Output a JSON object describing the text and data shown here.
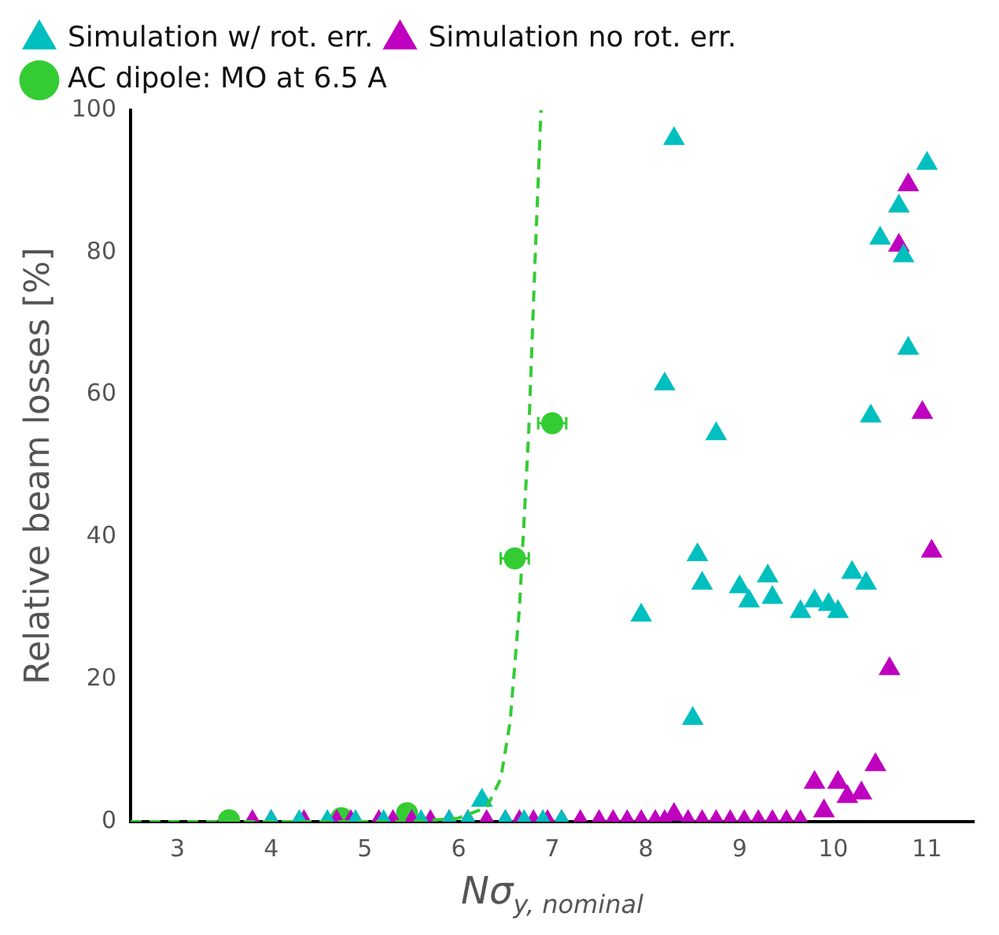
{
  "chart_data": {
    "type": "scatter",
    "xlabel": "Nσ$_{y, nominal}$",
    "ylabel": "Relative beam losses [%]",
    "xlim": [
      2.5,
      11.5
    ],
    "xticks": [
      3,
      4,
      5,
      6,
      7,
      8,
      9,
      10,
      11
    ],
    "ylim": [
      0,
      100
    ],
    "yticks": [
      0,
      20,
      40,
      60,
      80,
      100
    ],
    "legend": "top",
    "grid": false,
    "series": [
      {
        "name": "Simulation w/ rot. err.",
        "color": "#00bfbf",
        "marker": "triangle",
        "x": [
          4.0,
          4.3,
          4.6,
          4.9,
          5.2,
          5.6,
          5.9,
          6.1,
          6.25,
          6.5,
          6.7,
          6.9,
          7.1,
          7.95,
          8.2,
          8.3,
          8.5,
          8.55,
          8.6,
          8.75,
          9.0,
          9.1,
          9.3,
          9.35,
          9.65,
          9.8,
          9.95,
          10.05,
          10.2,
          10.35,
          10.4,
          10.5,
          10.7,
          10.75,
          10.8,
          11.0
        ],
        "values": [
          0,
          0,
          0,
          0,
          0,
          0,
          0,
          0,
          3,
          0,
          0,
          0,
          0,
          29,
          61.5,
          96,
          14.5,
          37.5,
          33.5,
          54.5,
          33,
          31,
          34.5,
          31.5,
          29.5,
          31,
          30.5,
          29.5,
          35,
          33.5,
          57,
          82,
          86.5,
          79.5,
          66.5,
          92.5
        ]
      },
      {
        "name": "Simulation no rot. err.",
        "color": "#bf00bf",
        "marker": "triangle",
        "x": [
          3.8,
          4.0,
          4.35,
          4.7,
          4.85,
          5.15,
          5.3,
          5.5,
          5.7,
          5.9,
          6.1,
          6.3,
          6.5,
          6.65,
          6.8,
          6.95,
          7.1,
          7.3,
          7.5,
          7.65,
          7.8,
          7.95,
          8.1,
          8.2,
          8.3,
          8.45,
          8.6,
          8.75,
          8.9,
          9.05,
          9.2,
          9.35,
          9.5,
          9.65,
          9.8,
          9.9,
          10.05,
          10.15,
          10.3,
          10.45,
          10.6,
          10.7,
          10.8,
          10.95,
          11.05
        ],
        "values": [
          0,
          0,
          0,
          0,
          0,
          0,
          0,
          0,
          0,
          0,
          0,
          0,
          0,
          0,
          0,
          0,
          0,
          0,
          0,
          0,
          0,
          0,
          0,
          0,
          1,
          0,
          0,
          0,
          0,
          0,
          0,
          0,
          0,
          0,
          5.5,
          1.5,
          5.5,
          3.5,
          4,
          8,
          21.5,
          81,
          89.5,
          57.5,
          38
        ]
      },
      {
        "name": "AC dipole: MO at 6.5 A",
        "color": "#33cc33",
        "marker": "circle",
        "x": [
          3.55,
          4.75,
          5.45,
          6.6,
          7.0
        ],
        "values": [
          0.2,
          0.5,
          1.2,
          37,
          56
        ],
        "xerrors": [
          null,
          null,
          null,
          0.15,
          0.15
        ]
      },
      {
        "type": "line",
        "color": "#33cc33",
        "marker": "none",
        "line_style": "dashed",
        "x": [
          2.5,
          5.5,
          6.0,
          6.3,
          6.45,
          6.55,
          6.65,
          6.75,
          6.82,
          6.88
        ],
        "values": [
          0,
          0,
          0.5,
          2,
          6,
          14,
          30,
          55,
          80,
          100
        ]
      }
    ]
  }
}
